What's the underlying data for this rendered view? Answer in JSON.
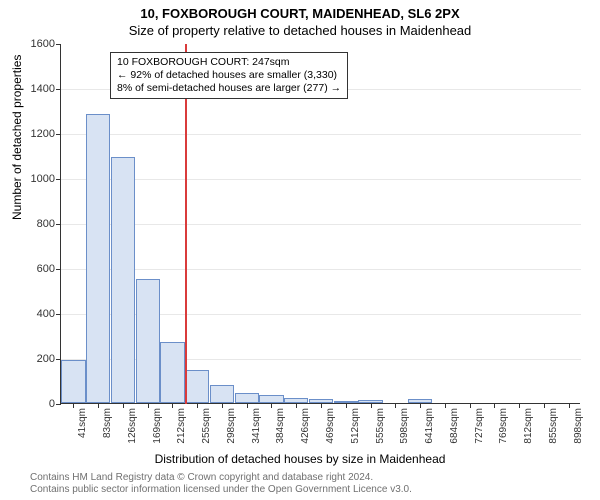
{
  "title_line1": "10, FOXBOROUGH COURT, MAIDENHEAD, SL6 2PX",
  "title_line2": "Size of property relative to detached houses in Maidenhead",
  "ylabel": "Number of detached properties",
  "xlabel": "Distribution of detached houses by size in Maidenhead",
  "chart": {
    "type": "histogram",
    "ylim": [
      0,
      1600
    ],
    "ytick_step": 200,
    "ymax_plot": 1600,
    "bar_fill": "#d8e3f3",
    "bar_stroke": "#6b8fc9",
    "grid_color": "#e8e8e8",
    "marker_color": "#d93b3b",
    "background": "#ffffff",
    "x_labels": [
      "41sqm",
      "83sqm",
      "126sqm",
      "169sqm",
      "212sqm",
      "255sqm",
      "298sqm",
      "341sqm",
      "384sqm",
      "426sqm",
      "469sqm",
      "512sqm",
      "555sqm",
      "598sqm",
      "641sqm",
      "684sqm",
      "727sqm",
      "769sqm",
      "812sqm",
      "855sqm",
      "898sqm"
    ],
    "values": [
      190,
      1285,
      1095,
      550,
      270,
      145,
      80,
      45,
      35,
      22,
      18,
      10,
      12,
      0,
      18,
      0,
      0,
      0,
      0,
      0,
      0
    ],
    "marker_index": 5
  },
  "annotation": {
    "line1": "10 FOXBOROUGH COURT: 247sqm",
    "line2": "← 92% of detached houses are smaller (3,330)",
    "line3": "8% of semi-detached houses are larger (277) →"
  },
  "footer": {
    "line1": "Contains HM Land Registry data © Crown copyright and database right 2024.",
    "line2": "Contains public sector information licensed under the Open Government Licence v3.0."
  }
}
